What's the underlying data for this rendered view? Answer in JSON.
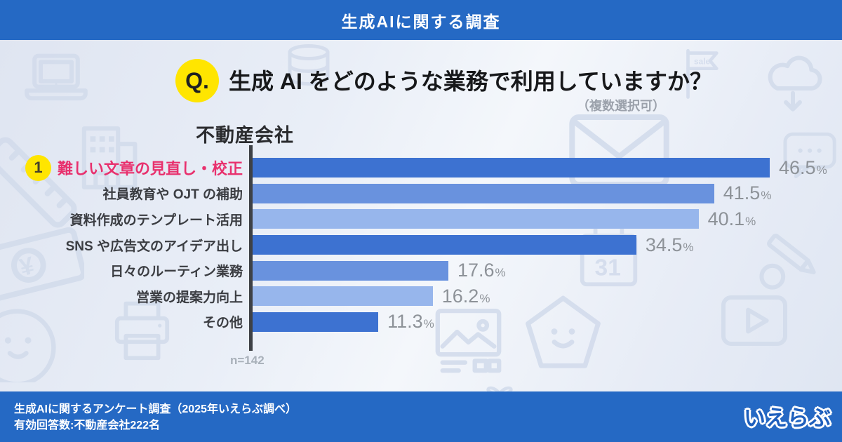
{
  "header": {
    "title": "生成AIに関する調査"
  },
  "question": {
    "badge": "Q.",
    "text": "生成 AI をどのような業務で利用していますか？",
    "note": "（複数選択可）"
  },
  "chart_data": {
    "type": "bar",
    "orientation": "horizontal",
    "title": "不動産会社",
    "categories": [
      "難しい文章の見直し・校正",
      "社員教育や OJT の補助",
      "資料作成のテンプレート活用",
      "SNS や広告文のアイデア出し",
      "日々のルーティン業務",
      "営業の提案力向上",
      "その他"
    ],
    "values": [
      46.5,
      41.5,
      40.1,
      34.5,
      17.6,
      16.2,
      11.3
    ],
    "unit": "%",
    "xlim": [
      0,
      50
    ],
    "grid": false,
    "legend": "none",
    "highlight_index": 0,
    "highlight_rank": "1",
    "sample_size": "n=142"
  },
  "footer": {
    "line1": "生成AIに関するアンケート調査（2025年いえらぶ調べ）",
    "line2": "有効回答数:不動産会社222名",
    "logo": "いえらぶ"
  },
  "watermark": {
    "icons": [
      "laptop",
      "database",
      "sale-flag",
      "cloud-download",
      "speech-bubble",
      "ruler",
      "building",
      "envelope",
      "banknote",
      "calendar-31",
      "pencil",
      "photo-frame",
      "pentagon-mascot",
      "play-video",
      "gift",
      "smiley",
      "printer"
    ],
    "calendar_text": "31",
    "flag_text": "sale",
    "banknote_text": "¥"
  },
  "colors": {
    "header_bg": "#2569c4",
    "bar_cycle": [
      "#3d72d1",
      "#6992de",
      "#97b6ec"
    ],
    "highlight_text": "#e8316e",
    "badge_yellow": "#ffe500",
    "value_text": "#8d9298",
    "axis": "#3e4146",
    "watermark_stroke": "#d3dcec"
  }
}
